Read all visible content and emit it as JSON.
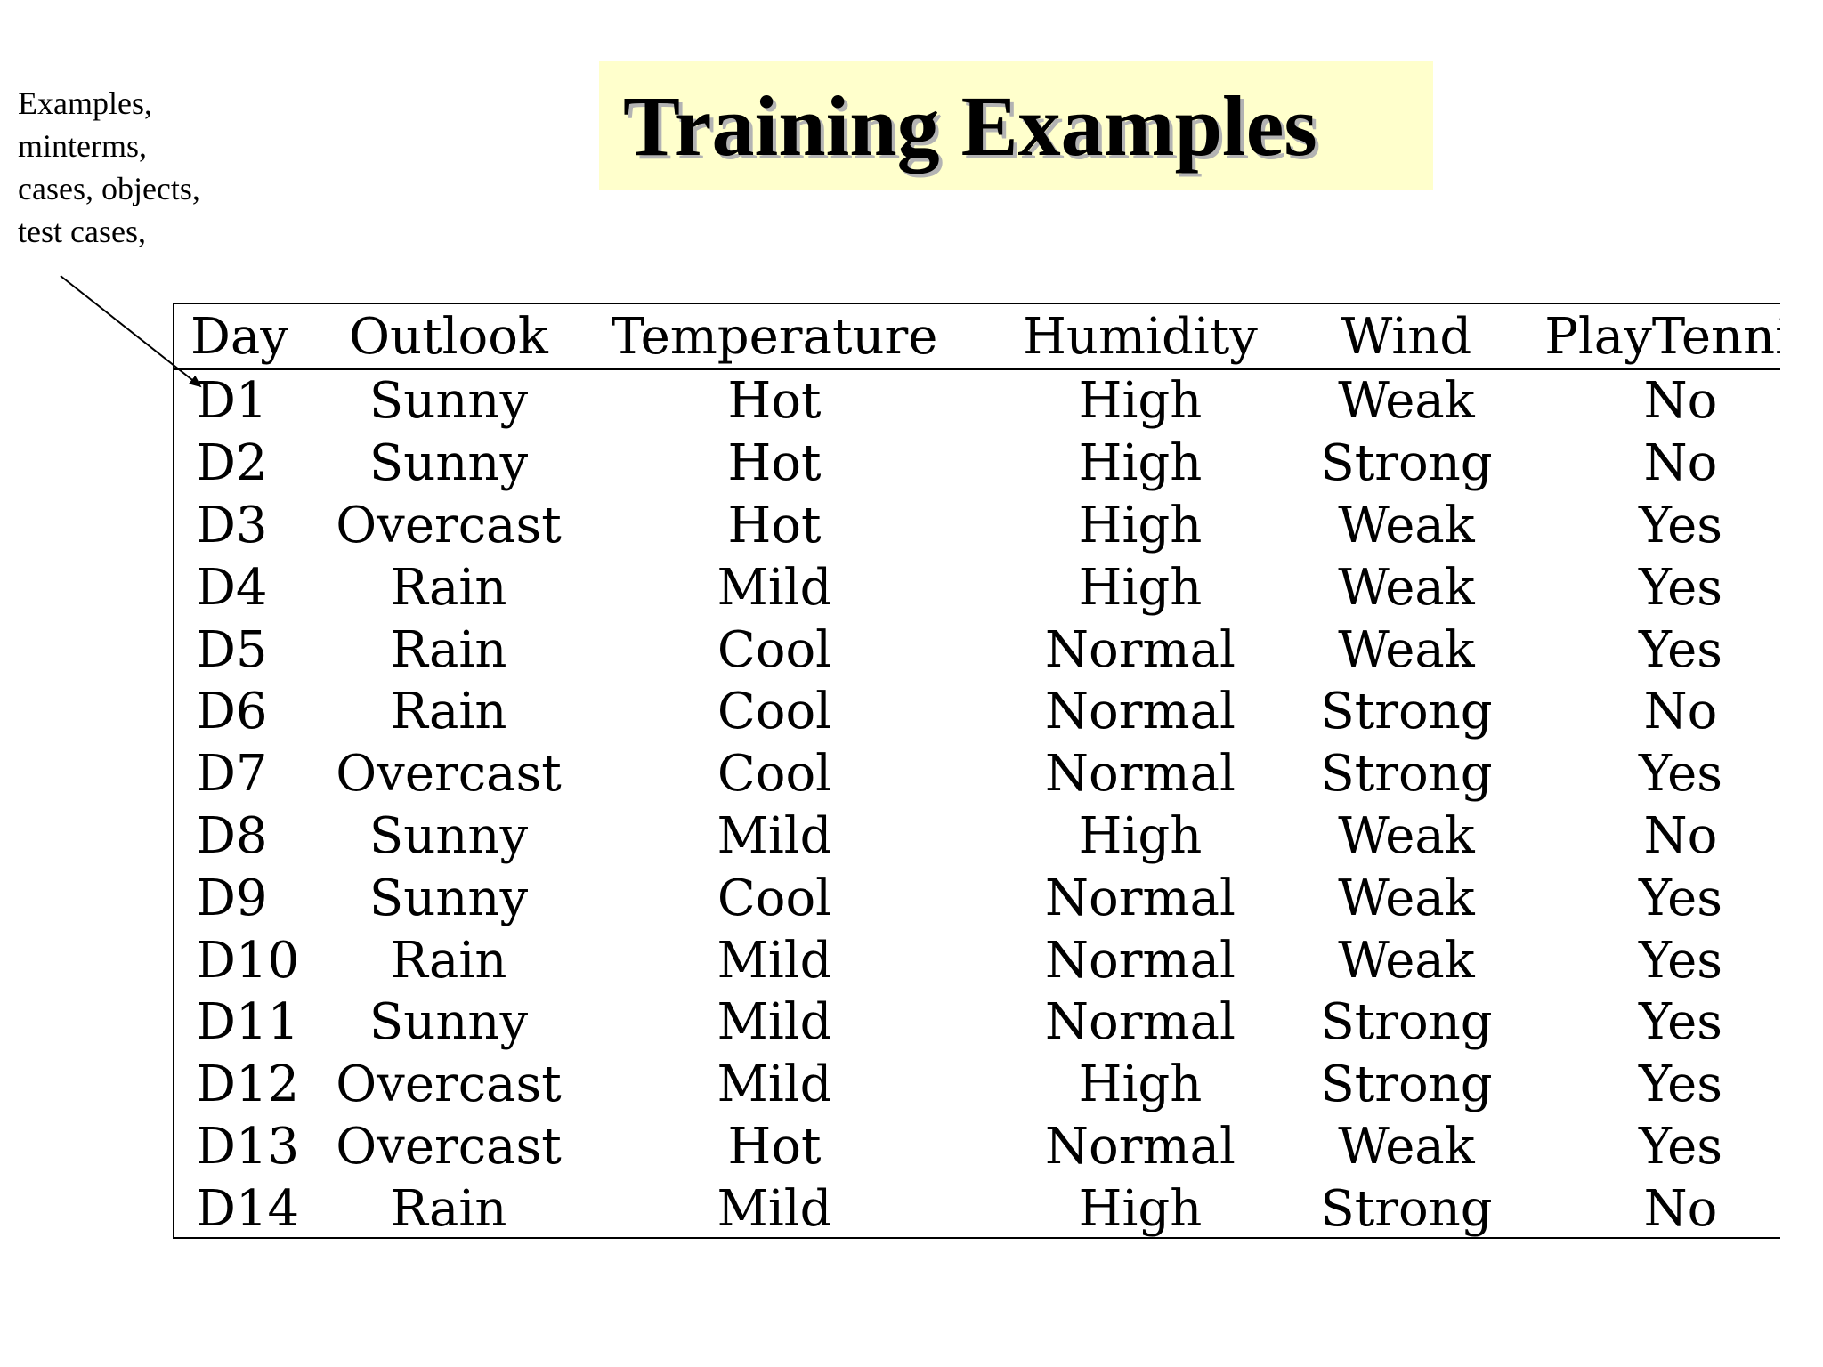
{
  "annotation": {
    "lines": [
      "Examples,",
      "minterms,",
      "cases, objects,",
      "test cases,"
    ]
  },
  "title": "Training Examples",
  "table": {
    "headers": [
      "Day",
      "Outlook",
      "Temperature",
      "Humidity",
      "Wind",
      "PlayTennis"
    ],
    "rows": [
      [
        "D1",
        "Sunny",
        "Hot",
        "High",
        "Weak",
        "No"
      ],
      [
        "D2",
        "Sunny",
        "Hot",
        "High",
        "Strong",
        "No"
      ],
      [
        "D3",
        "Overcast",
        "Hot",
        "High",
        "Weak",
        "Yes"
      ],
      [
        "D4",
        "Rain",
        "Mild",
        "High",
        "Weak",
        "Yes"
      ],
      [
        "D5",
        "Rain",
        "Cool",
        "Normal",
        "Weak",
        "Yes"
      ],
      [
        "D6",
        "Rain",
        "Cool",
        "Normal",
        "Strong",
        "No"
      ],
      [
        "D7",
        "Overcast",
        "Cool",
        "Normal",
        "Strong",
        "Yes"
      ],
      [
        "D8",
        "Sunny",
        "Mild",
        "High",
        "Weak",
        "No"
      ],
      [
        "D9",
        "Sunny",
        "Cool",
        "Normal",
        "Weak",
        "Yes"
      ],
      [
        "D10",
        "Rain",
        "Mild",
        "Normal",
        "Weak",
        "Yes"
      ],
      [
        "D11",
        "Sunny",
        "Mild",
        "Normal",
        "Strong",
        "Yes"
      ],
      [
        "D12",
        "Overcast",
        "Mild",
        "High",
        "Strong",
        "Yes"
      ],
      [
        "D13",
        "Overcast",
        "Hot",
        "Normal",
        "Weak",
        "Yes"
      ],
      [
        "D14",
        "Rain",
        "Mild",
        "High",
        "Strong",
        "No"
      ]
    ]
  },
  "colors": {
    "title_background": "#ffffcc",
    "title_shadow": "#b3b3b3",
    "text": "#000000"
  }
}
